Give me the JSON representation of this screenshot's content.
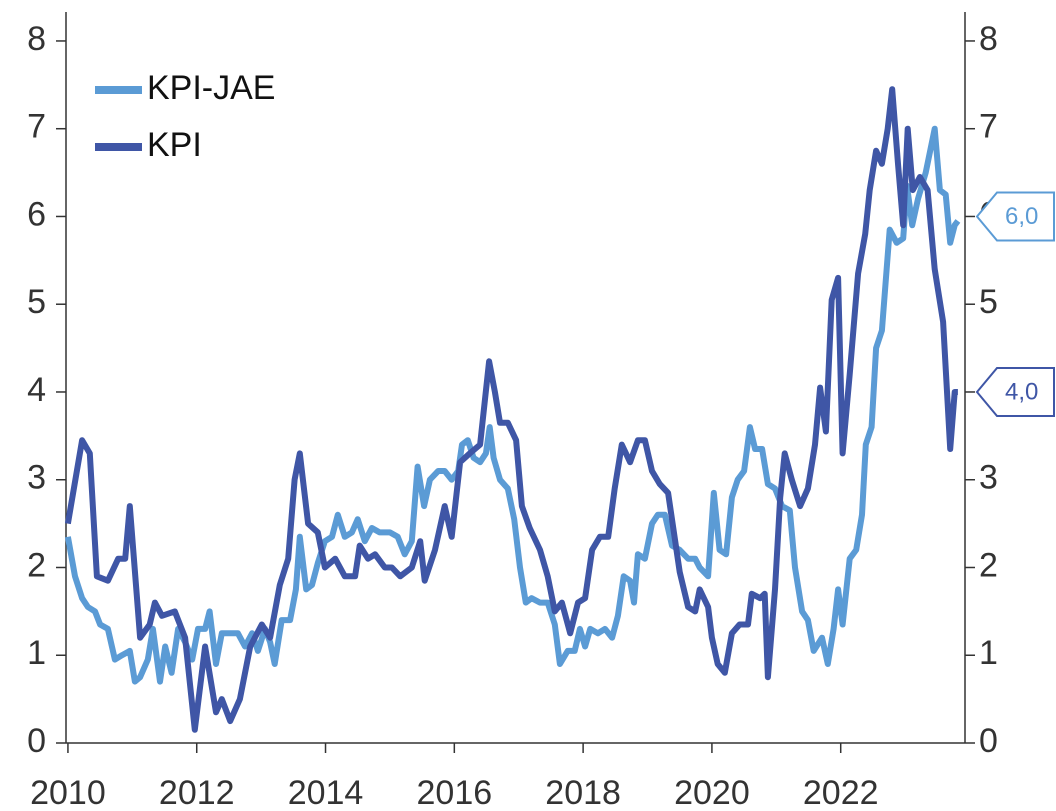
{
  "chart_data": {
    "type": "line",
    "xlim": [
      2009.97,
      2023.93
    ],
    "xticks": [
      2010,
      2012,
      2014,
      2016,
      2018,
      2020,
      2022
    ],
    "ylim": [
      0,
      8.33
    ],
    "yticks": [
      0,
      1,
      2,
      3,
      4,
      5,
      6,
      7,
      8
    ],
    "y2lim": [
      0,
      8.33
    ],
    "y2ticks": [
      0,
      1,
      2,
      3,
      4,
      5,
      6,
      7,
      8
    ],
    "legend": "top-left",
    "series": [
      {
        "name": "KPI-JAE",
        "color": "#5b9bd5",
        "x": [
          2010.0,
          2010.11,
          2010.22,
          2010.31,
          2010.42,
          2010.5,
          2010.62,
          2010.73,
          2010.84,
          2010.96,
          2011.04,
          2011.12,
          2011.24,
          2011.32,
          2011.43,
          2011.51,
          2011.61,
          2011.71,
          2011.82,
          2011.93,
          2012.02,
          2012.13,
          2012.2,
          2012.3,
          2012.39,
          2012.52,
          2012.64,
          2012.75,
          2012.86,
          2012.95,
          2013.06,
          2013.14,
          2013.21,
          2013.32,
          2013.45,
          2013.54,
          2013.6,
          2013.7,
          2013.79,
          2013.88,
          2013.99,
          2014.1,
          2014.19,
          2014.3,
          2014.41,
          2014.5,
          2014.61,
          2014.72,
          2014.84,
          2015.0,
          2015.12,
          2015.23,
          2015.34,
          2015.43,
          2015.53,
          2015.62,
          2015.75,
          2015.85,
          2015.96,
          2016.06,
          2016.12,
          2016.21,
          2016.3,
          2016.4,
          2016.49,
          2016.55,
          2016.61,
          2016.71,
          2016.83,
          2016.93,
          2017.02,
          2017.11,
          2017.2,
          2017.33,
          2017.45,
          2017.56,
          2017.64,
          2017.76,
          2017.87,
          2017.95,
          2018.03,
          2018.11,
          2018.23,
          2018.34,
          2018.45,
          2018.54,
          2018.63,
          2018.73,
          2018.79,
          2018.85,
          2018.96,
          2019.07,
          2019.16,
          2019.27,
          2019.38,
          2019.5,
          2019.63,
          2019.74,
          2019.81,
          2019.94,
          2020.03,
          2020.12,
          2020.22,
          2020.31,
          2020.4,
          2020.5,
          2020.59,
          2020.67,
          2020.78,
          2020.87,
          2020.98,
          2021.09,
          2021.21,
          2021.29,
          2021.4,
          2021.49,
          2021.58,
          2021.71,
          2021.8,
          2021.89,
          2021.96,
          2022.03,
          2022.14,
          2022.24,
          2022.33,
          2022.39,
          2022.48,
          2022.55,
          2022.64,
          2022.76,
          2022.87,
          2022.97,
          2023.03,
          2023.11,
          2023.2,
          2023.32,
          2023.46,
          2023.54,
          2023.63,
          2023.7,
          2023.77,
          2023.82
        ],
        "values": [
          2.35,
          1.9,
          1.65,
          1.55,
          1.5,
          1.35,
          1.3,
          0.95,
          1.0,
          1.05,
          0.7,
          0.75,
          0.95,
          1.3,
          0.7,
          1.1,
          0.8,
          1.3,
          1.15,
          0.95,
          1.3,
          1.3,
          1.5,
          0.9,
          1.25,
          1.25,
          1.25,
          1.1,
          1.25,
          1.05,
          1.3,
          1.15,
          0.9,
          1.4,
          1.4,
          1.75,
          2.35,
          1.75,
          1.8,
          2.05,
          2.3,
          2.35,
          2.6,
          2.35,
          2.4,
          2.55,
          2.3,
          2.45,
          2.4,
          2.4,
          2.35,
          2.15,
          2.3,
          3.15,
          2.7,
          3.0,
          3.1,
          3.1,
          3.0,
          3.1,
          3.4,
          3.45,
          3.25,
          3.2,
          3.3,
          3.6,
          3.25,
          3.0,
          2.9,
          2.55,
          2.0,
          1.6,
          1.65,
          1.6,
          1.6,
          1.35,
          0.9,
          1.05,
          1.05,
          1.3,
          1.1,
          1.3,
          1.25,
          1.3,
          1.2,
          1.45,
          1.9,
          1.85,
          1.6,
          2.15,
          2.1,
          2.5,
          2.6,
          2.6,
          2.25,
          2.2,
          2.1,
          2.1,
          2.0,
          1.9,
          2.85,
          2.2,
          2.15,
          2.8,
          3.0,
          3.1,
          3.6,
          3.35,
          3.35,
          2.95,
          2.9,
          2.7,
          2.65,
          2.0,
          1.5,
          1.4,
          1.05,
          1.2,
          0.9,
          1.3,
          1.75,
          1.35,
          2.1,
          2.2,
          2.6,
          3.4,
          3.6,
          4.5,
          4.7,
          5.85,
          5.7,
          5.75,
          6.35,
          5.9,
          6.2,
          6.5,
          7.0,
          6.3,
          6.25,
          5.7,
          5.9,
          5.95
        ]
      },
      {
        "name": "KPI",
        "color": "#3f56a6",
        "x": [
          2010.0,
          2010.22,
          2010.34,
          2010.45,
          2010.62,
          2010.78,
          2010.89,
          2010.96,
          2011.12,
          2011.27,
          2011.35,
          2011.46,
          2011.66,
          2011.82,
          2011.97,
          2012.13,
          2012.3,
          2012.39,
          2012.52,
          2012.67,
          2012.83,
          2013.01,
          2013.14,
          2013.29,
          2013.42,
          2013.52,
          2013.6,
          2013.73,
          2013.88,
          2013.99,
          2014.15,
          2014.3,
          2014.46,
          2014.53,
          2014.66,
          2014.77,
          2014.92,
          2015.03,
          2015.16,
          2015.34,
          2015.47,
          2015.54,
          2015.7,
          2015.85,
          2015.96,
          2016.09,
          2016.24,
          2016.4,
          2016.54,
          2016.63,
          2016.71,
          2016.83,
          2016.96,
          2017.05,
          2017.17,
          2017.33,
          2017.45,
          2017.56,
          2017.67,
          2017.8,
          2017.92,
          2018.03,
          2018.14,
          2018.26,
          2018.39,
          2018.49,
          2018.6,
          2018.73,
          2018.85,
          2018.96,
          2019.07,
          2019.19,
          2019.32,
          2019.43,
          2019.5,
          2019.63,
          2019.74,
          2019.81,
          2019.94,
          2020.0,
          2020.09,
          2020.2,
          2020.31,
          2020.43,
          2020.56,
          2020.62,
          2020.75,
          2020.82,
          2020.87,
          2020.98,
          2021.06,
          2021.13,
          2021.24,
          2021.37,
          2021.49,
          2021.6,
          2021.68,
          2021.77,
          2021.86,
          2021.96,
          2022.03,
          2022.14,
          2022.27,
          2022.38,
          2022.45,
          2022.55,
          2022.64,
          2022.73,
          2022.8,
          2022.89,
          2022.97,
          2023.04,
          2023.12,
          2023.23,
          2023.35,
          2023.46,
          2023.59,
          2023.7,
          2023.77,
          2023.82
        ],
        "values": [
          2.5,
          3.45,
          3.3,
          1.9,
          1.85,
          2.1,
          2.1,
          2.7,
          1.2,
          1.35,
          1.6,
          1.45,
          1.5,
          1.2,
          0.15,
          1.1,
          0.35,
          0.5,
          0.25,
          0.5,
          1.1,
          1.35,
          1.2,
          1.8,
          2.1,
          3.0,
          3.3,
          2.5,
          2.4,
          2.0,
          2.1,
          1.9,
          1.9,
          2.25,
          2.1,
          2.15,
          2.0,
          2.0,
          1.9,
          2.0,
          2.3,
          1.85,
          2.2,
          2.7,
          2.35,
          3.2,
          3.3,
          3.4,
          4.35,
          4.0,
          3.65,
          3.65,
          3.45,
          2.7,
          2.45,
          2.2,
          1.9,
          1.5,
          1.6,
          1.25,
          1.6,
          1.65,
          2.2,
          2.35,
          2.35,
          2.9,
          3.4,
          3.2,
          3.45,
          3.45,
          3.1,
          2.95,
          2.85,
          2.3,
          1.95,
          1.55,
          1.5,
          1.75,
          1.55,
          1.2,
          0.9,
          0.8,
          1.25,
          1.35,
          1.35,
          1.7,
          1.65,
          1.7,
          0.75,
          1.75,
          2.8,
          3.3,
          3.0,
          2.7,
          2.9,
          3.4,
          4.05,
          3.55,
          5.05,
          5.3,
          3.3,
          4.2,
          5.35,
          5.8,
          6.3,
          6.75,
          6.6,
          7.0,
          7.45,
          6.6,
          5.9,
          7.0,
          6.3,
          6.45,
          6.3,
          5.4,
          4.8,
          3.35,
          4.0,
          4.0
        ]
      }
    ],
    "annotations": [
      {
        "label": "6,0",
        "value": 6.0,
        "color": "#5b9bd5"
      },
      {
        "label": "4,0",
        "value": 4.0,
        "color": "#3f56a6"
      }
    ]
  }
}
